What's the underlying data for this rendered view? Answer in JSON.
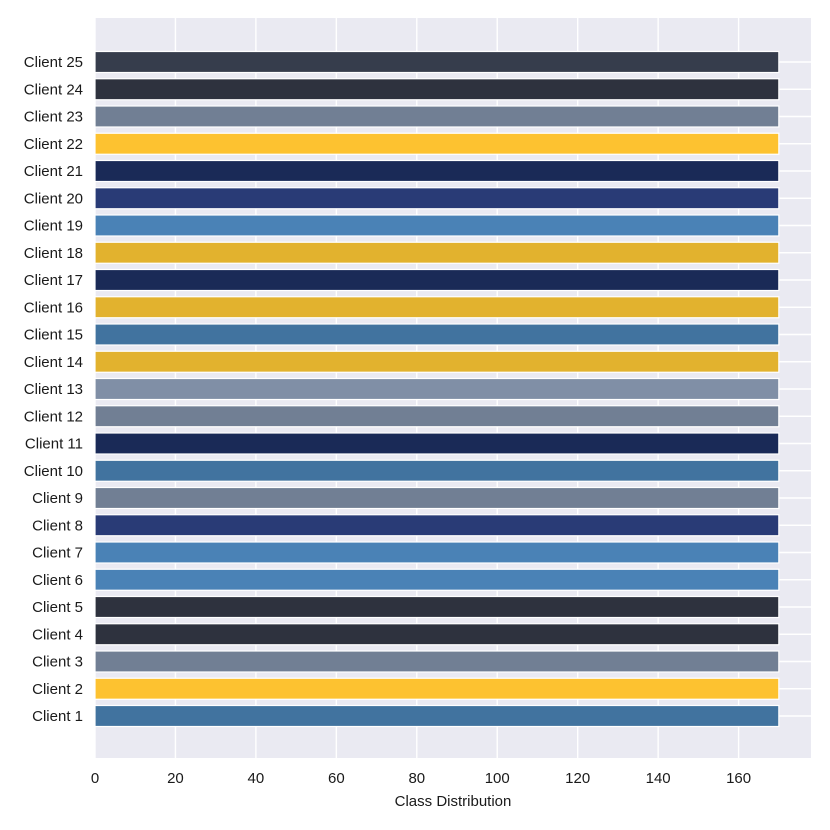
{
  "chart_data": {
    "type": "bar",
    "orientation": "horizontal",
    "title": "",
    "xlabel": "Class Distribution",
    "ylabel": "",
    "xlim": [
      0,
      178
    ],
    "x_ticks": [
      0,
      20,
      40,
      60,
      80,
      100,
      120,
      140,
      160
    ],
    "grid": true,
    "background_color": "#EAEAF2",
    "grid_color": "#FFFFFF",
    "categories": [
      "Client 1",
      "Client 2",
      "Client 3",
      "Client 4",
      "Client 5",
      "Client 6",
      "Client 7",
      "Client 8",
      "Client 9",
      "Client 10",
      "Client 11",
      "Client 12",
      "Client 13",
      "Client 14",
      "Client 15",
      "Client 16",
      "Client 17",
      "Client 18",
      "Client 19",
      "Client 20",
      "Client 21",
      "Client 22",
      "Client 23",
      "Client 24",
      "Client 25"
    ],
    "values": [
      170,
      170,
      170,
      170,
      170,
      170,
      170,
      170,
      170,
      170,
      170,
      170,
      170,
      170,
      170,
      170,
      170,
      170,
      170,
      170,
      170,
      170,
      170,
      170,
      170
    ],
    "colors": [
      "#41739F",
      "#FDC230",
      "#717F94",
      "#2E323E",
      "#2E323E",
      "#4A82B6",
      "#4A82B6",
      "#293B76",
      "#717F94",
      "#41739F",
      "#1A2A57",
      "#717F94",
      "#808FA6",
      "#E2B22E",
      "#41739F",
      "#E2B22E",
      "#1A2A57",
      "#E2B22E",
      "#4A82B6",
      "#293B76",
      "#1A2A57",
      "#FDC230",
      "#717F94",
      "#2E323E",
      "#363D4C"
    ]
  }
}
